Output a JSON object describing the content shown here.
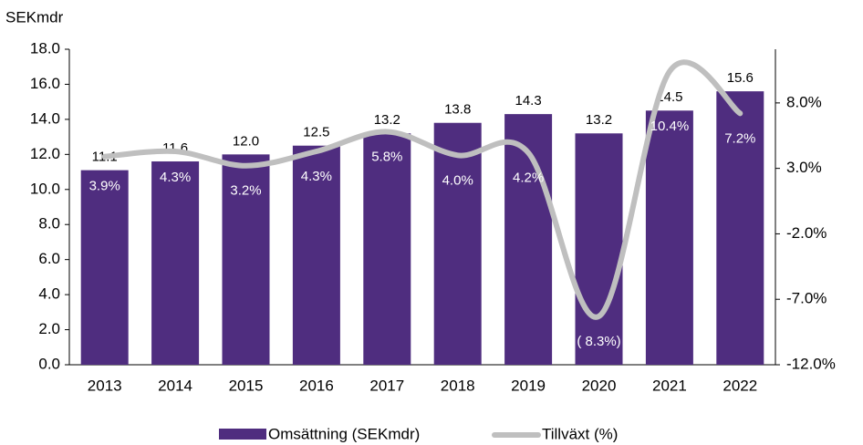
{
  "chart_data": {
    "type": "bar",
    "y_label": "SEKmdr",
    "categories": [
      "2013",
      "2014",
      "2015",
      "2016",
      "2017",
      "2018",
      "2019",
      "2020",
      "2021",
      "2022"
    ],
    "series": [
      {
        "name": "Omsättning (SEKmdr)",
        "type": "bar",
        "color": "#4f2d7f",
        "values": [
          11.1,
          11.6,
          12.0,
          12.5,
          13.2,
          13.8,
          14.3,
          13.2,
          14.5,
          15.6
        ],
        "value_labels": [
          "11.1",
          "11.6",
          "12.0",
          "12.5",
          "13.2",
          "13.8",
          "14.3",
          "13.2",
          "14.5",
          "15.6"
        ]
      },
      {
        "name": "Tillväxt (%)",
        "type": "line",
        "axis": "y2",
        "color": "#bfbfbf",
        "values": [
          3.9,
          4.3,
          3.2,
          4.3,
          5.8,
          4.0,
          4.2,
          -8.3,
          10.4,
          7.2
        ],
        "value_labels": [
          "3.9%",
          "4.3%",
          "3.2%",
          "4.3%",
          "5.8%",
          "4.0%",
          "4.2%",
          "( 8.3%)",
          "10.4%",
          "7.2%"
        ]
      }
    ],
    "ylim": [
      0,
      18
    ],
    "yticks": [
      {
        "value": 0,
        "label": "0.0"
      },
      {
        "value": 2,
        "label": "2.0"
      },
      {
        "value": 4,
        "label": "4.0"
      },
      {
        "value": 6,
        "label": "6.0"
      },
      {
        "value": 8,
        "label": "8.0"
      },
      {
        "value": 10,
        "label": "10.0"
      },
      {
        "value": 12,
        "label": "12.0"
      },
      {
        "value": 14,
        "label": "14.0"
      },
      {
        "value": 16,
        "label": "16.0"
      },
      {
        "value": 18,
        "label": "18.0"
      }
    ],
    "y2lim": [
      -12,
      12.1
    ],
    "y2ticks": [
      {
        "value": -12,
        "label": "-12.0%"
      },
      {
        "value": -7,
        "label": "-7.0%"
      },
      {
        "value": -2,
        "label": "-2.0%"
      },
      {
        "value": 3,
        "label": "3.0%"
      },
      {
        "value": 8,
        "label": "8.0%"
      }
    ]
  }
}
